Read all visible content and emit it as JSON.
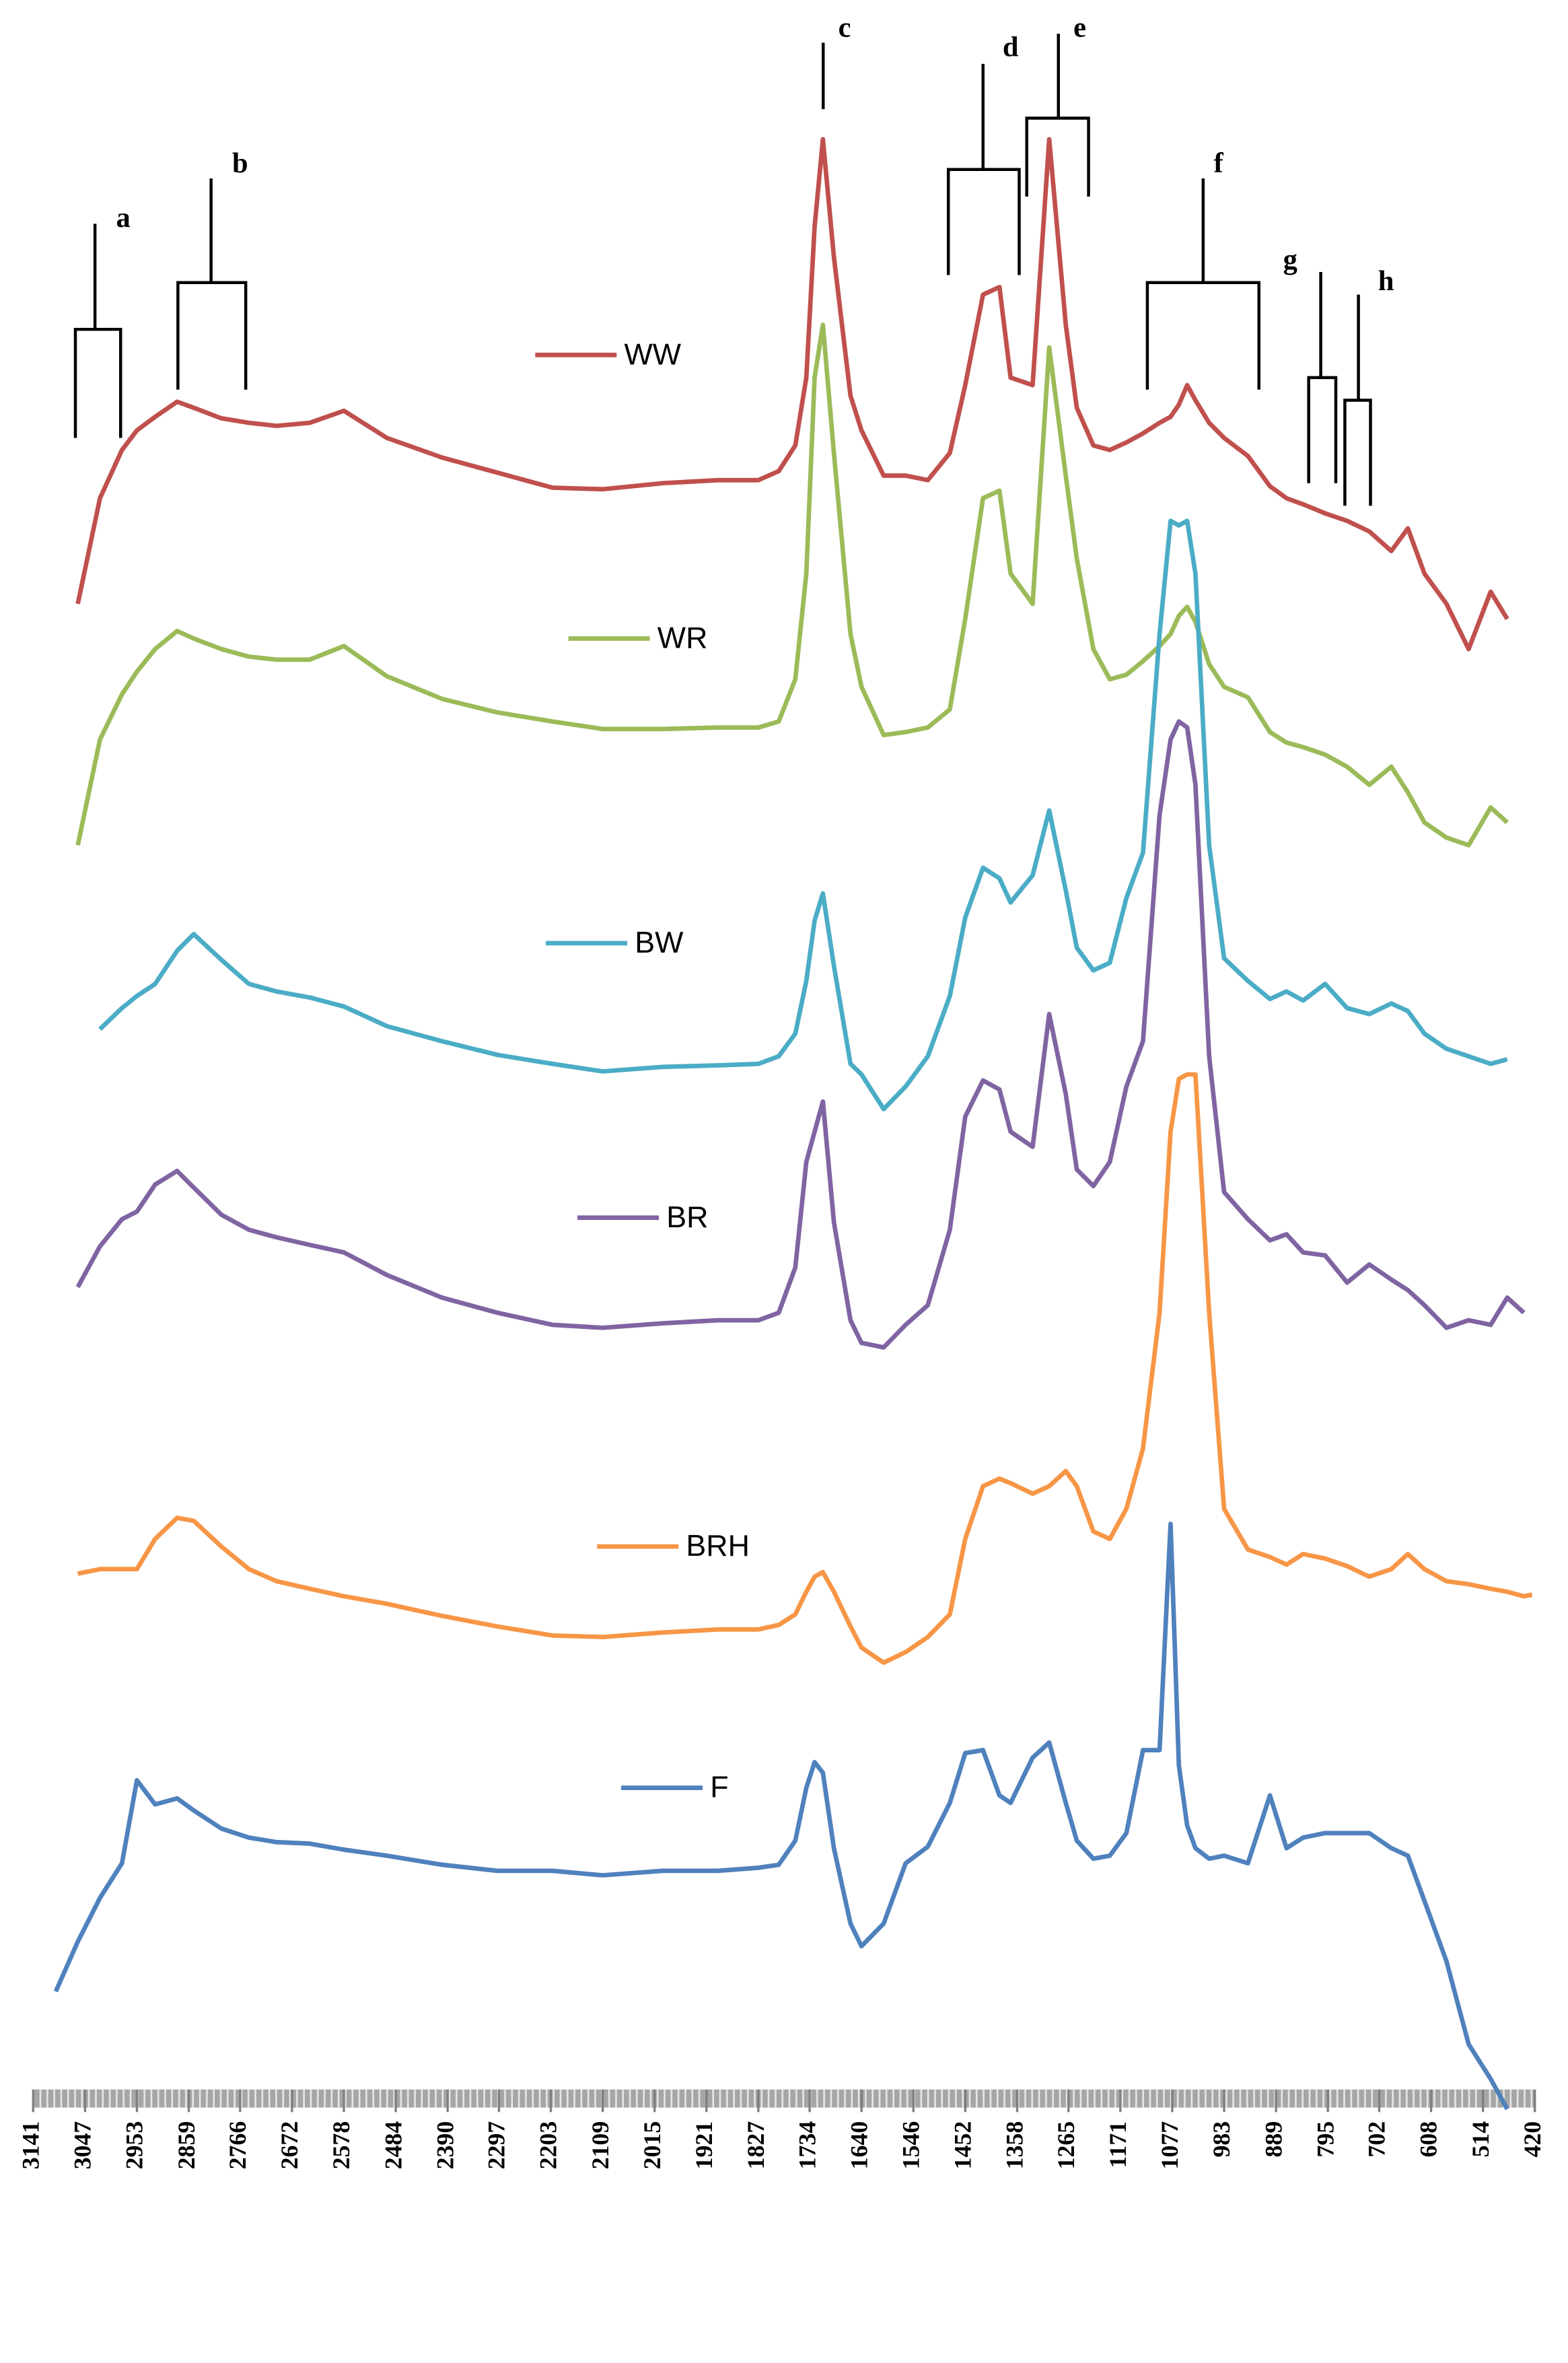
{
  "chart_data": {
    "type": "line",
    "x": [
      3120,
      3100,
      3060,
      3020,
      2980,
      2953,
      2920,
      2880,
      2850,
      2800,
      2750,
      2700,
      2640,
      2578,
      2500,
      2400,
      2300,
      2200,
      2109,
      2000,
      1900,
      1827,
      1790,
      1760,
      1740,
      1725,
      1710,
      1690,
      1660,
      1640,
      1600,
      1560,
      1520,
      1480,
      1452,
      1420,
      1390,
      1370,
      1330,
      1300,
      1270,
      1250,
      1220,
      1190,
      1160,
      1130,
      1100,
      1080,
      1065,
      1050,
      1035,
      1010,
      983,
      940,
      900,
      870,
      840,
      800,
      760,
      720,
      680,
      650,
      620,
      580,
      540,
      500,
      470,
      440,
      425
    ],
    "xlim": [
      3141,
      420
    ],
    "xticks": [
      3141,
      3047,
      2953,
      2859,
      2766,
      2672,
      2578,
      2484,
      2390,
      2297,
      2203,
      2109,
      2015,
      1921,
      1827,
      1734,
      1640,
      1546,
      1452,
      1358,
      1265,
      1171,
      1077,
      983,
      889,
      795,
      702,
      608,
      514,
      420
    ],
    "series": [
      {
        "name": "WW",
        "color": "#c0504d",
        "values": [
          null,
          null,
          1100,
          1170,
          1202,
          1215,
          1224,
          1234,
          1230,
          1223,
          1220,
          1218,
          1220,
          1228,
          1210,
          1197,
          1187,
          1177,
          1176,
          1180,
          1182,
          1182,
          1188,
          1205,
          1250,
          1350,
          1408,
          1330,
          1238,
          1215,
          1185,
          1185,
          1182,
          1200,
          1245,
          1305,
          1310,
          1250,
          1245,
          1408,
          1285,
          1230,
          1205,
          1202,
          1207,
          1213,
          1220,
          1224,
          1232,
          1245,
          1235,
          1220,
          1210,
          1198,
          1178,
          1170,
          1166,
          1160,
          1155,
          1148,
          1135,
          1150,
          1120,
          1100,
          1070,
          1108,
          1090,
          null,
          null
        ]
      },
      {
        "name": "WR",
        "color": "#9bbb59",
        "values": [
          null,
          null,
          940,
          1010,
          1040,
          1055,
          1070,
          1082,
          1077,
          1070,
          1065,
          1063,
          1063,
          1072,
          1052,
          1037,
          1028,
          1022,
          1017,
          1017,
          1018,
          1018,
          1022,
          1050,
          1120,
          1250,
          1285,
          1200,
          1080,
          1045,
          1013,
          1015,
          1018,
          1030,
          1090,
          1170,
          1175,
          1120,
          1100,
          1270,
          1185,
          1130,
          1070,
          1050,
          1053,
          1062,
          1072,
          1080,
          1092,
          1098,
          1088,
          1060,
          1045,
          1038,
          1015,
          1008,
          1005,
          1000,
          992,
          980,
          992,
          975,
          955,
          945,
          940,
          965,
          955,
          null,
          null
        ]
      },
      {
        "name": "BW",
        "color": "#4bacc6",
        "values": [
          null,
          null,
          null,
          818,
          832,
          840,
          848,
          870,
          881,
          864,
          848,
          843,
          839,
          833,
          820,
          810,
          801,
          795,
          790,
          793,
          794,
          795,
          800,
          815,
          850,
          890,
          908,
          860,
          795,
          788,
          765,
          780,
          800,
          840,
          892,
          925,
          918,
          902,
          920,
          963,
          910,
          872,
          857,
          862,
          905,
          935,
          1080,
          1155,
          1152,
          1155,
          1120,
          940,
          865,
          850,
          838,
          843,
          837,
          848,
          832,
          828,
          835,
          830,
          815,
          805,
          800,
          795,
          798,
          null,
          null
        ]
      },
      {
        "name": "BR",
        "color": "#8064a2",
        "values": [
          null,
          null,
          647,
          674,
          692,
          697,
          715,
          724,
          713,
          695,
          685,
          680,
          675,
          670,
          655,
          640,
          630,
          622,
          620,
          623,
          625,
          625,
          630,
          660,
          730,
          750,
          770,
          690,
          625,
          610,
          607,
          622,
          635,
          685,
          760,
          784,
          778,
          750,
          740,
          828,
          775,
          725,
          714,
          730,
          780,
          810,
          960,
          1010,
          1022,
          1018,
          980,
          800,
          710,
          692,
          678,
          682,
          670,
          668,
          650,
          662,
          652,
          645,
          635,
          620,
          625,
          622,
          640,
          630,
          null
        ]
      },
      {
        "name": "BRH",
        "color": "#f79646",
        "values": [
          null,
          null,
          457,
          460,
          460,
          460,
          480,
          494,
          492,
          475,
          460,
          452,
          447,
          442,
          437,
          429,
          422,
          416,
          415,
          418,
          420,
          420,
          423,
          430,
          445,
          455,
          458,
          445,
          422,
          408,
          398,
          405,
          415,
          430,
          480,
          515,
          520,
          517,
          510,
          515,
          525,
          515,
          485,
          480,
          500,
          540,
          630,
          750,
          785,
          788,
          788,
          630,
          500,
          473,
          468,
          463,
          470,
          467,
          462,
          455,
          460,
          470,
          460,
          452,
          450,
          447,
          445,
          442,
          443
        ]
      },
      {
        "name": "F",
        "color": "#4f81bd",
        "values": [
          null,
          180,
          213,
          242,
          265,
          320,
          304,
          308,
          300,
          288,
          282,
          279,
          278,
          274,
          270,
          264,
          260,
          260,
          257,
          260,
          260,
          262,
          264,
          280,
          315,
          332,
          325,
          275,
          225,
          210,
          225,
          265,
          276,
          305,
          338,
          340,
          310,
          305,
          335,
          345,
          305,
          280,
          268,
          270,
          285,
          340,
          340,
          490,
          330,
          290,
          275,
          268,
          270,
          265,
          310,
          275,
          282,
          285,
          285,
          285,
          275,
          270,
          240,
          200,
          145,
          122,
          102,
          null,
          null
        ]
      }
    ],
    "annotations": [
      "a",
      "b",
      "c",
      "d",
      "e",
      "f",
      "g",
      "h"
    ]
  }
}
